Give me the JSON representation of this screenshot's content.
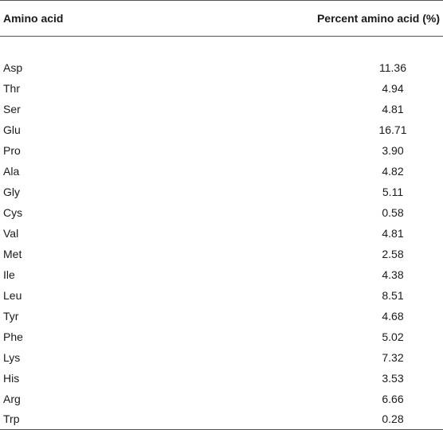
{
  "table": {
    "headers": [
      "Amino acid",
      "Percent amino acid (%)"
    ],
    "rows": [
      [
        "Asp",
        "11.36"
      ],
      [
        "Thr",
        "4.94"
      ],
      [
        "Ser",
        "4.81"
      ],
      [
        "Glu",
        "16.71"
      ],
      [
        "Pro",
        "3.90"
      ],
      [
        "Ala",
        "4.82"
      ],
      [
        "Gly",
        "5.11"
      ],
      [
        "Cys",
        "0.58"
      ],
      [
        "Val",
        "4.81"
      ],
      [
        "Met",
        "2.58"
      ],
      [
        "Ile",
        "4.38"
      ],
      [
        "Leu",
        "8.51"
      ],
      [
        "Tyr",
        "4.68"
      ],
      [
        "Phe",
        "5.02"
      ],
      [
        "Lys",
        "7.32"
      ],
      [
        "His",
        "3.53"
      ],
      [
        "Arg",
        "6.66"
      ],
      [
        "Trp",
        "0.28"
      ]
    ]
  }
}
